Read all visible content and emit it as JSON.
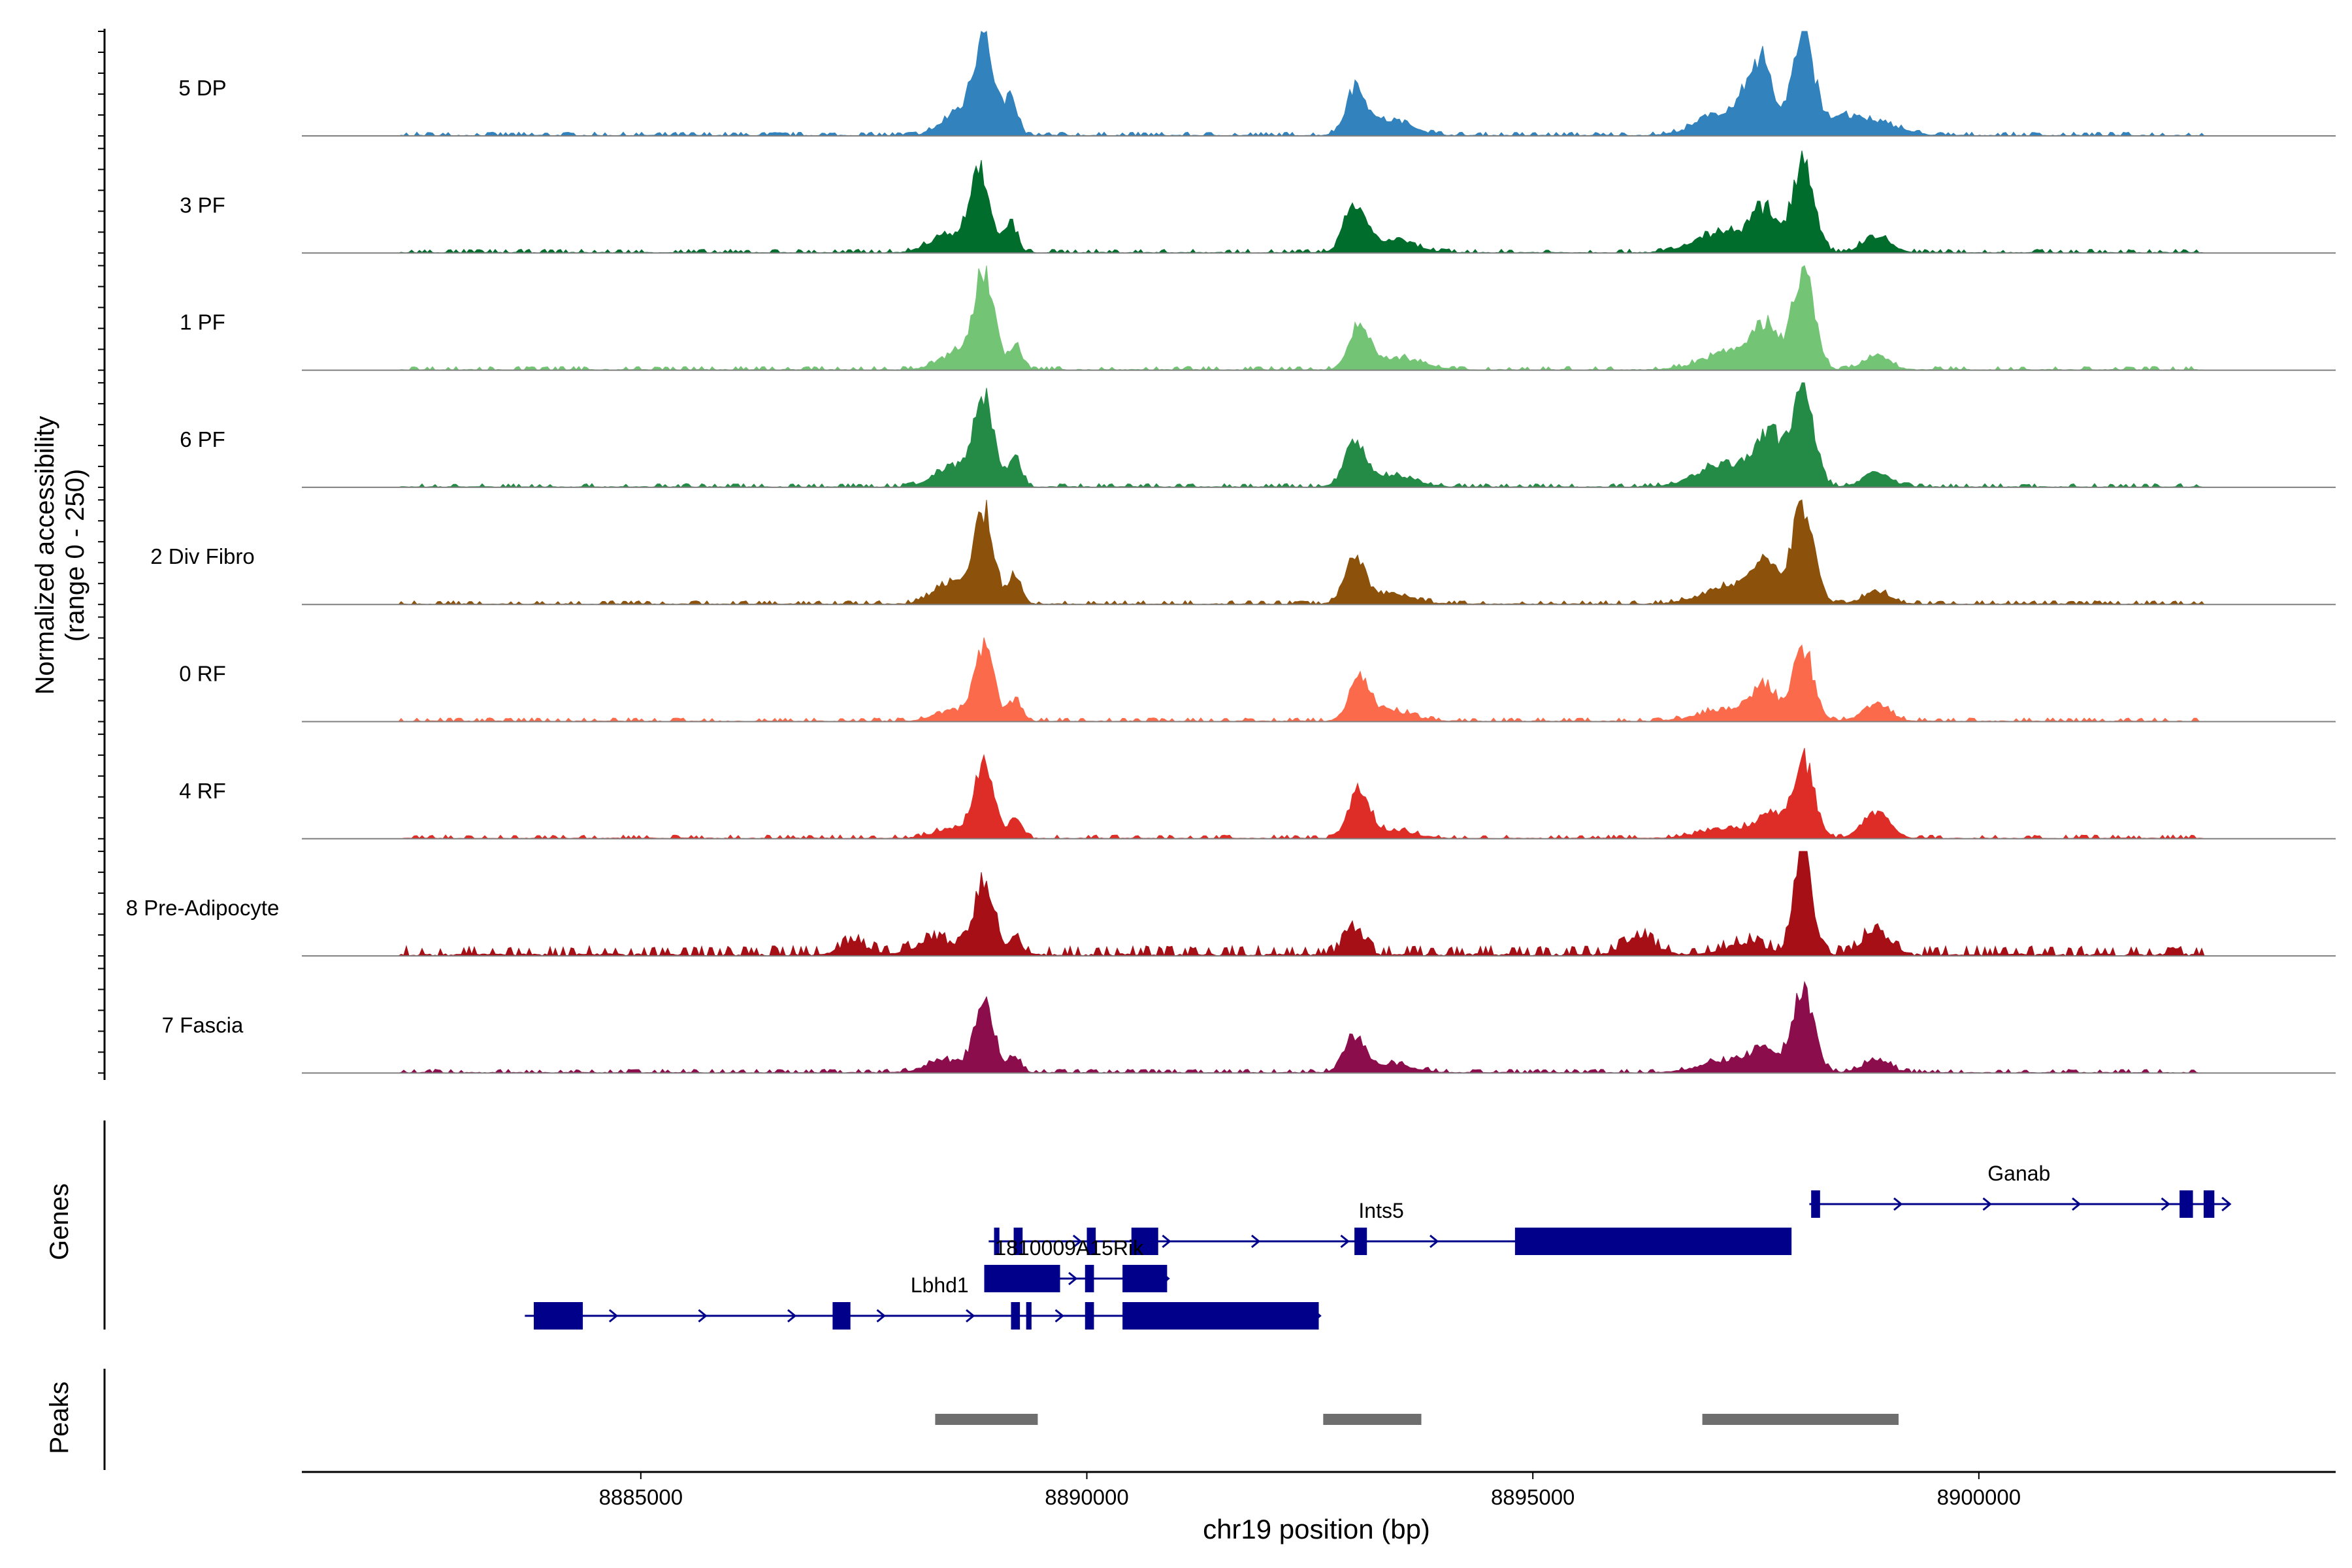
{
  "chart_data": {
    "type": "area",
    "title": "",
    "ylabel_line1": "Normalized accessibility",
    "ylabel_line2": "(range 0 - 250)",
    "xlabel": "chr19 position (bp)",
    "xlim": [
      8881200,
      8904000
    ],
    "ylim": [
      0,
      250
    ],
    "x_ticks": [
      8885000,
      8890000,
      8895000,
      8900000
    ],
    "x_tick_labels": [
      "8885000",
      "8890000",
      "8895000",
      "8900000"
    ],
    "genes_label": "Genes",
    "peaks_label": "Peaks",
    "tracks": [
      {
        "name": "5 DP",
        "color": "#3182bd",
        "peaks": [
          [
            8888850,
            220,
            110
          ],
          [
            8889150,
            90,
            70
          ],
          [
            8888600,
            60,
            200
          ],
          [
            8893020,
            110,
            110
          ],
          [
            8893400,
            35,
            250
          ],
          [
            8897550,
            160,
            130
          ],
          [
            8898030,
            235,
            120
          ],
          [
            8897200,
            60,
            300
          ],
          [
            8898500,
            45,
            250
          ],
          [
            8899000,
            20,
            200
          ]
        ],
        "background": 3
      },
      {
        "name": "3 PF",
        "color": "#006d2c",
        "peaks": [
          [
            8888800,
            190,
            110
          ],
          [
            8889150,
            70,
            70
          ],
          [
            8888450,
            45,
            200
          ],
          [
            8893000,
            110,
            110
          ],
          [
            8893400,
            30,
            250
          ],
          [
            8897600,
            90,
            140
          ],
          [
            8898030,
            225,
            120
          ],
          [
            8897150,
            50,
            300
          ],
          [
            8898850,
            40,
            150
          ]
        ],
        "background": 3
      },
      {
        "name": "1 PF",
        "color": "#74c476",
        "peaks": [
          [
            8888850,
            225,
            110
          ],
          [
            8889200,
            60,
            70
          ],
          [
            8888550,
            40,
            200
          ],
          [
            8893050,
            105,
            110
          ],
          [
            8893500,
            28,
            250
          ],
          [
            8897600,
            95,
            140
          ],
          [
            8898030,
            235,
            120
          ],
          [
            8897200,
            40,
            300
          ],
          [
            8898850,
            30,
            150
          ]
        ],
        "background": 3
      },
      {
        "name": "6 PF",
        "color": "#238b45",
        "peaks": [
          [
            8888850,
            210,
            110
          ],
          [
            8889200,
            65,
            70
          ],
          [
            8888500,
            50,
            200
          ],
          [
            8893000,
            100,
            110
          ],
          [
            8893400,
            30,
            250
          ],
          [
            8897650,
            125,
            140
          ],
          [
            8898030,
            230,
            120
          ],
          [
            8897150,
            55,
            300
          ],
          [
            8898850,
            35,
            150
          ]
        ],
        "background": 3
      },
      {
        "name": "2 Div Fibro",
        "color": "#8c510a",
        "peaks": [
          [
            8888850,
            210,
            110
          ],
          [
            8889200,
            65,
            70
          ],
          [
            8888500,
            55,
            200
          ],
          [
            8893000,
            110,
            110
          ],
          [
            8893400,
            25,
            250
          ],
          [
            8897600,
            90,
            140
          ],
          [
            8898030,
            240,
            120
          ],
          [
            8897200,
            40,
            300
          ],
          [
            8898850,
            30,
            150
          ]
        ],
        "background": 3
      },
      {
        "name": "0 RF",
        "color": "#fb6a4a",
        "peaks": [
          [
            8888850,
            170,
            110
          ],
          [
            8889200,
            55,
            70
          ],
          [
            8888500,
            25,
            200
          ],
          [
            8893050,
            95,
            110
          ],
          [
            8893400,
            25,
            250
          ],
          [
            8897600,
            70,
            140
          ],
          [
            8898030,
            165,
            120
          ],
          [
            8897200,
            30,
            300
          ],
          [
            8898850,
            40,
            150
          ]
        ],
        "background": 3
      },
      {
        "name": "4 RF",
        "color": "#de2d26",
        "peaks": [
          [
            8888850,
            160,
            110
          ],
          [
            8889200,
            45,
            70
          ],
          [
            8888500,
            25,
            200
          ],
          [
            8893050,
            110,
            110
          ],
          [
            8893400,
            20,
            250
          ],
          [
            8897650,
            50,
            140
          ],
          [
            8898030,
            190,
            120
          ],
          [
            8897200,
            25,
            300
          ],
          [
            8898850,
            60,
            150
          ]
        ],
        "background": 3
      },
      {
        "name": "8 Pre-Adipocyte",
        "color": "#a50f15",
        "peaks": [
          [
            8888850,
            180,
            110
          ],
          [
            8889200,
            40,
            70
          ],
          [
            8888300,
            40,
            200
          ],
          [
            8887400,
            30,
            150
          ],
          [
            8893000,
            60,
            110
          ],
          [
            8896200,
            40,
            180
          ],
          [
            8898030,
            250,
            100
          ],
          [
            8897400,
            30,
            200
          ],
          [
            8898850,
            55,
            150
          ]
        ],
        "background": 8
      },
      {
        "name": "7 Fascia",
        "color": "#8c0d4c",
        "peaks": [
          [
            8888850,
            170,
            110
          ],
          [
            8889200,
            35,
            70
          ],
          [
            8888400,
            30,
            200
          ],
          [
            8893000,
            85,
            110
          ],
          [
            8893400,
            20,
            250
          ],
          [
            8897600,
            50,
            140
          ],
          [
            8898030,
            190,
            120
          ],
          [
            8897200,
            30,
            300
          ],
          [
            8898850,
            30,
            150
          ]
        ],
        "background": 3
      }
    ],
    "genes": [
      {
        "name": "Ganab",
        "row": 0,
        "start": 8898100,
        "end": 8902800,
        "exons": [
          [
            8898120,
            8898220
          ],
          [
            8902250,
            8902400
          ],
          [
            8902520,
            8902640
          ]
        ],
        "label_x": 8900450
      },
      {
        "name": "Ints5",
        "row": 1,
        "start": 8888900,
        "end": 8897850,
        "exons": [
          [
            8888960,
            8889020
          ],
          [
            8889180,
            8889280
          ],
          [
            8890000,
            8890100
          ],
          [
            8890500,
            8890800
          ],
          [
            8893000,
            8893140
          ],
          [
            8894800,
            8897900
          ]
        ],
        "label_x": 8893300
      },
      {
        "name": "1810009A15Rik",
        "row": 2,
        "start": 8888850,
        "end": 8890900,
        "exons": [
          [
            8888850,
            8889700
          ],
          [
            8889980,
            8890080
          ],
          [
            8890400,
            8890900
          ]
        ],
        "label_x": 8889800
      },
      {
        "name": "Lbhd1",
        "row": 3,
        "start": 8883700,
        "end": 8892600,
        "exons": [
          [
            8883800,
            8884350
          ],
          [
            8887150,
            8887350
          ],
          [
            8889150,
            8889250
          ],
          [
            8889320,
            8889380
          ],
          [
            8889980,
            8890080
          ],
          [
            8890400,
            8892600
          ]
        ],
        "label_x": 8888350
      }
    ],
    "peak_regions": [
      [
        8888300,
        8889450
      ],
      [
        8892650,
        8893750
      ],
      [
        8896900,
        8899100
      ]
    ]
  }
}
